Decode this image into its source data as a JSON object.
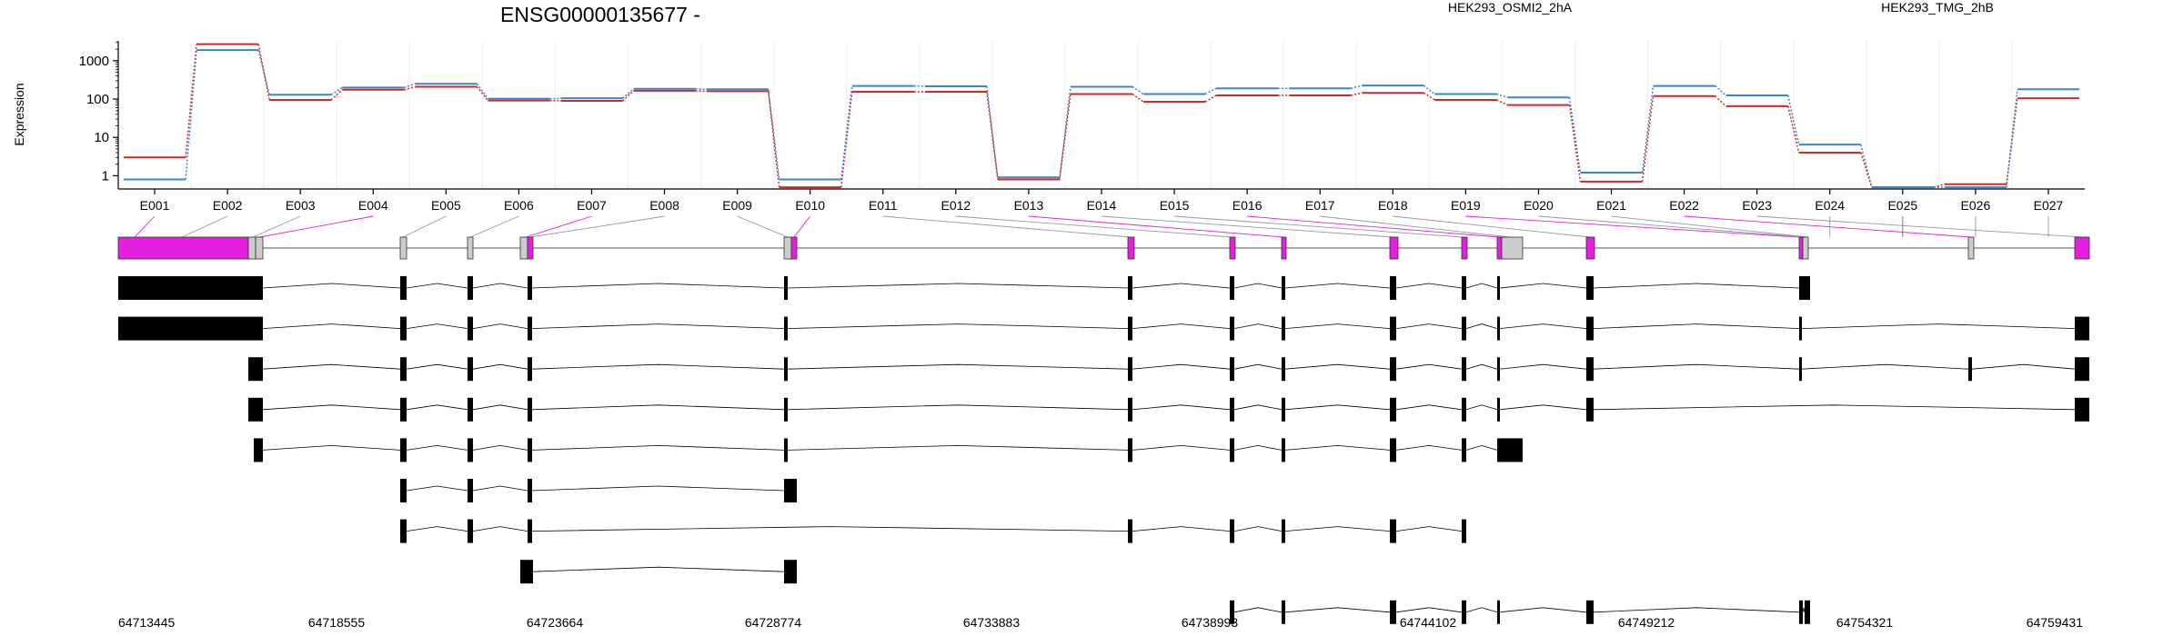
{
  "chart_data": {
    "type": "line",
    "title": "ENSG00000135677 -",
    "ylabel": "Expression",
    "y_scale": "log",
    "y_ticks": [
      "1",
      "10",
      "100",
      "1000"
    ],
    "grid": true,
    "legend_placement": "top-right",
    "categories": [
      "E001",
      "E002",
      "E003",
      "E004",
      "E005",
      "E006",
      "E007",
      "E008",
      "E009",
      "E010",
      "E011",
      "E012",
      "E013",
      "E014",
      "E015",
      "E016",
      "E017",
      "E018",
      "E019",
      "E020",
      "E021",
      "E022",
      "E023",
      "E024",
      "E025",
      "E026",
      "E027"
    ],
    "series": [
      {
        "name": "HEK293_OSMI2_2hA",
        "color": "#d62728",
        "values": [
          3.0,
          2700,
          95,
          175,
          210,
          92,
          90,
          165,
          160,
          0.5,
          155,
          155,
          0.8,
          135,
          85,
          125,
          125,
          145,
          95,
          70,
          0.7,
          120,
          65,
          4.0,
          0.5,
          0.6,
          105
        ]
      },
      {
        "name": "HEK293_TMG_2hB",
        "color": "#3d85c6",
        "values": [
          0.8,
          1900,
          130,
          200,
          250,
          102,
          105,
          185,
          180,
          0.8,
          220,
          215,
          0.9,
          210,
          135,
          190,
          190,
          225,
          135,
          110,
          1.2,
          220,
          125,
          6.5,
          0.5,
          0.5,
          180
        ]
      }
    ],
    "genomic_axis": {
      "ticks": [
        "64713445",
        "64718555",
        "64723664",
        "64728774",
        "64733883",
        "64738993",
        "64744102",
        "64749212",
        "64754321",
        "64759431"
      ]
    },
    "colors": {
      "exon_highlight": "#e41fe0",
      "exon_neutral": "#cccccc",
      "transcript": "#000000"
    }
  }
}
